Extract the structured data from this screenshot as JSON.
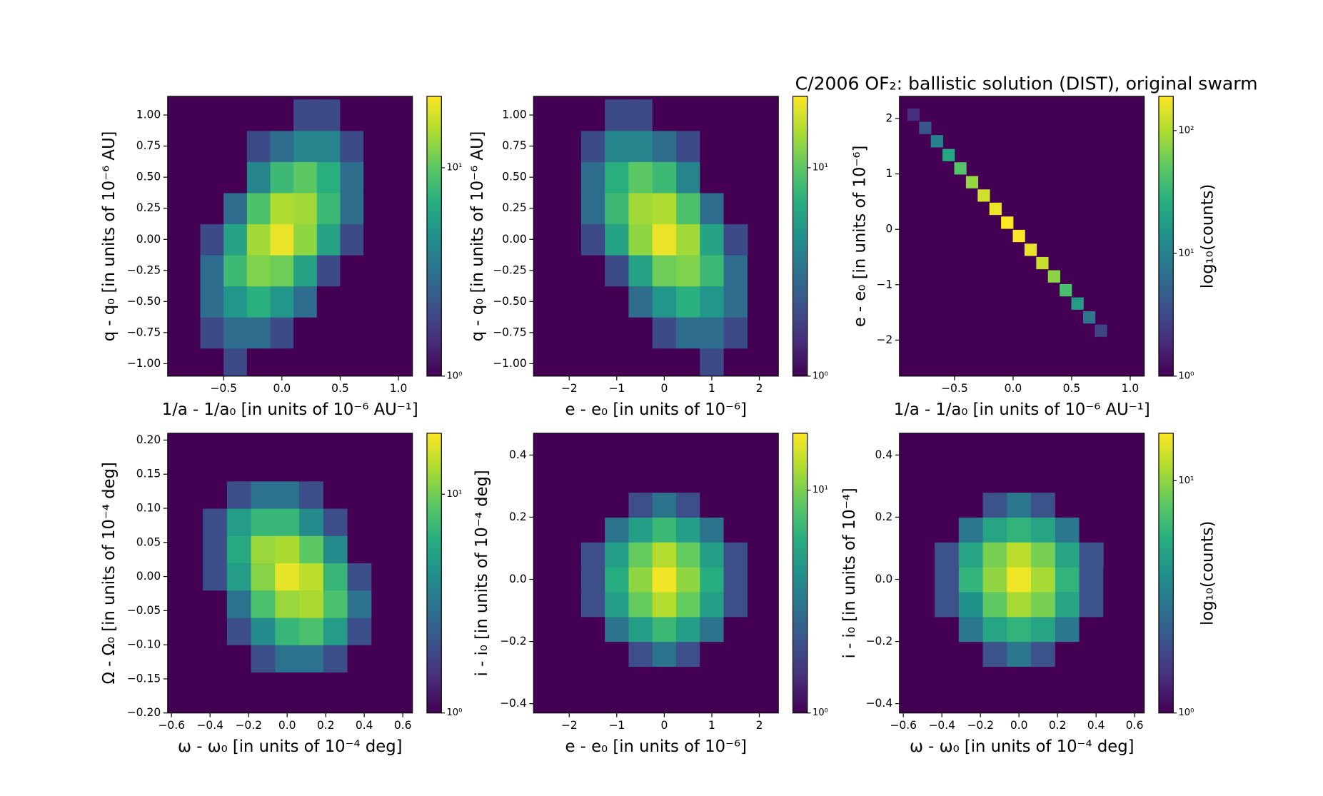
{
  "title": "C/2006 OF₂:  ballistic solution (DIST), original swarm",
  "chart_data": [
    {
      "type": "hexbin",
      "colormap": "viridis",
      "xlabel": "1/a - 1/a₀ [in units of 10⁻⁶ AU⁻¹]",
      "ylabel": "q - q₀ [in units of 10⁻⁶ AU]",
      "xlim": [
        -0.98,
        1.12
      ],
      "ylim": [
        -1.1,
        1.15
      ],
      "xticks": [
        {
          "value": -0.5,
          "label": "−0.5"
        },
        {
          "value": 0,
          "label": "0.0"
        },
        0.5,
        {
          "value": 1,
          "label": "1.0"
        }
      ],
      "yticks": [
        {
          "value": -1,
          "label": "−1.00"
        },
        {
          "value": -0.75,
          "label": "−0.75"
        },
        {
          "value": -0.5,
          "label": "−0.50"
        },
        {
          "value": -0.25,
          "label": "−0.25"
        },
        {
          "value": 0,
          "label": "0.00"
        },
        {
          "value": 0.25,
          "label": "0.25"
        },
        {
          "value": 0.5,
          "label": "0.50"
        },
        0.75,
        {
          "value": 1,
          "label": "1.00"
        }
      ],
      "clim": [
        1,
        22
      ],
      "cticks": [
        {
          "value": 1,
          "label": "10⁰"
        },
        {
          "value": 10,
          "label": "10¹"
        }
      ],
      "x": [
        -0.8,
        -0.6,
        -0.4,
        -0.2,
        0,
        0.2,
        0.4,
        0.6,
        0.8
      ],
      "y": [
        -1,
        -0.75,
        -0.5,
        -0.25,
        0,
        0.25,
        0.5,
        0.75,
        1
      ],
      "counts": [
        [
          1,
          1,
          2,
          1,
          1,
          0,
          0,
          0,
          0
        ],
        [
          1,
          2,
          3,
          3,
          2,
          1,
          0,
          0,
          0
        ],
        [
          1,
          3,
          5,
          7,
          5,
          3,
          1,
          0,
          0
        ],
        [
          1,
          3,
          8,
          12,
          11,
          6,
          2,
          1,
          0
        ],
        [
          0,
          2,
          6,
          14,
          20,
          13,
          6,
          2,
          1
        ],
        [
          0,
          1,
          3,
          9,
          15,
          14,
          8,
          3,
          1
        ],
        [
          0,
          0,
          1,
          4,
          8,
          10,
          7,
          3,
          1
        ],
        [
          0,
          0,
          1,
          2,
          3,
          4,
          4,
          2,
          1
        ],
        [
          0,
          0,
          0,
          1,
          1,
          2,
          2,
          1,
          1
        ]
      ]
    },
    {
      "type": "hexbin",
      "colormap": "viridis",
      "xlabel": "e - e₀ [in units of 10⁻⁶]",
      "ylabel": "q - q₀ [in units of 10⁻⁶ AU]",
      "xlim": [
        -2.75,
        2.4
      ],
      "ylim": [
        -1.1,
        1.15
      ],
      "xticks": [
        {
          "value": -2,
          "label": "−2"
        },
        {
          "value": -1,
          "label": "−1"
        },
        0,
        1,
        2
      ],
      "yticks": [
        {
          "value": -1,
          "label": "−1.00"
        },
        {
          "value": -0.75,
          "label": "−0.75"
        },
        {
          "value": -0.5,
          "label": "−0.50"
        },
        {
          "value": -0.25,
          "label": "−0.25"
        },
        {
          "value": 0,
          "label": "0.00"
        },
        {
          "value": 0.25,
          "label": "0.25"
        },
        {
          "value": 0.5,
          "label": "0.50"
        },
        0.75,
        {
          "value": 1,
          "label": "1.00"
        }
      ],
      "clim": [
        1,
        22
      ],
      "cticks": [
        {
          "value": 1,
          "label": "10⁰"
        },
        {
          "value": 10,
          "label": "10¹"
        }
      ],
      "x": [
        -2,
        -1.5,
        -1,
        -0.5,
        0,
        0.5,
        1,
        1.5,
        2
      ],
      "y": [
        -1,
        -0.75,
        -0.5,
        -0.25,
        0,
        0.25,
        0.5,
        0.75,
        1
      ],
      "counts": [
        [
          0,
          0,
          0,
          0,
          1,
          1,
          2,
          1,
          1
        ],
        [
          0,
          0,
          0,
          1,
          2,
          3,
          3,
          2,
          1
        ],
        [
          0,
          0,
          1,
          3,
          5,
          7,
          5,
          3,
          1
        ],
        [
          0,
          1,
          2,
          6,
          11,
          12,
          8,
          3,
          1
        ],
        [
          1,
          2,
          6,
          13,
          20,
          14,
          6,
          2,
          0
        ],
        [
          1,
          3,
          8,
          14,
          15,
          9,
          3,
          1,
          0
        ],
        [
          1,
          3,
          7,
          10,
          8,
          4,
          1,
          0,
          0
        ],
        [
          1,
          2,
          4,
          4,
          3,
          2,
          1,
          0,
          0
        ],
        [
          1,
          1,
          2,
          2,
          1,
          1,
          0,
          0,
          0
        ]
      ]
    },
    {
      "type": "hexbin",
      "colormap": "viridis",
      "xlabel": "1/a - 1/a₀ [in units of 10⁻⁶ AU⁻¹]",
      "ylabel": "e - e₀ [in units of 10⁻⁶]",
      "colorbar_label": "log₁₀(counts)",
      "xlim": [
        -0.97,
        1.12
      ],
      "ylim": [
        -2.65,
        2.4
      ],
      "xticks": [
        {
          "value": -0.5,
          "label": "−0.5"
        },
        {
          "value": 0,
          "label": "0.0"
        },
        0.5,
        {
          "value": 1,
          "label": "1.0"
        }
      ],
      "yticks": [
        {
          "value": -2,
          "label": "−2"
        },
        {
          "value": -1,
          "label": "−1"
        },
        0,
        1,
        2
      ],
      "clim": [
        1,
        190
      ],
      "cticks": [
        {
          "value": 1,
          "label": "10⁰"
        },
        {
          "value": 10,
          "label": "10¹"
        },
        {
          "value": 100,
          "label": "10²"
        }
      ],
      "x": [
        -0.85,
        -0.75,
        -0.65,
        -0.55,
        -0.45,
        -0.35,
        -0.25,
        -0.15,
        -0.05,
        0.05,
        0.15,
        0.25,
        0.35,
        0.45,
        0.55,
        0.65,
        0.75,
        0.85
      ],
      "y": [
        2.07,
        1.83,
        1.59,
        1.34,
        1.1,
        0.85,
        0.61,
        0.37,
        0.12,
        -0.12,
        -0.37,
        -0.61,
        -0.85,
        -1.1,
        -1.34,
        -1.59,
        -1.83,
        -2.07
      ],
      "counts": [
        2,
        4,
        10,
        22,
        45,
        80,
        130,
        170,
        190,
        185,
        160,
        120,
        75,
        40,
        18,
        8,
        3,
        1
      ]
    },
    {
      "type": "hexbin",
      "colormap": "viridis",
      "xlabel": "ω - ω₀ [in units of 10⁻⁴ deg]",
      "ylabel": "Ω - Ω₀ [in units of 10⁻⁴ deg]",
      "xlim": [
        -0.62,
        0.65
      ],
      "ylim": [
        -0.2,
        0.21
      ],
      "xticks": [
        {
          "value": -0.6,
          "label": "−0.6"
        },
        {
          "value": -0.4,
          "label": "−0.4"
        },
        {
          "value": -0.2,
          "label": "−0.2"
        },
        {
          "value": 0,
          "label": "0.0"
        },
        0.2,
        0.4,
        0.6
      ],
      "yticks": [
        {
          "value": -0.2,
          "label": "−0.20"
        },
        {
          "value": -0.15,
          "label": "−0.15"
        },
        {
          "value": -0.1,
          "label": "−0.10"
        },
        {
          "value": -0.05,
          "label": "−0.05"
        },
        {
          "value": 0,
          "label": "0.00"
        },
        0.05,
        {
          "value": 0.1,
          "label": "0.10"
        },
        0.15,
        {
          "value": 0.2,
          "label": "0.20"
        }
      ],
      "clim": [
        1,
        19
      ],
      "cticks": [
        {
          "value": 1,
          "label": "10⁰"
        },
        {
          "value": 10,
          "label": "10¹"
        }
      ],
      "x": [
        -0.5,
        -0.375,
        -0.25,
        -0.125,
        0,
        0.125,
        0.25,
        0.375,
        0.5
      ],
      "y": [
        -0.16,
        -0.12,
        -0.08,
        -0.04,
        0,
        0.04,
        0.08,
        0.12,
        0.16
      ],
      "counts": [
        [
          0,
          0,
          0,
          1,
          1,
          1,
          1,
          0,
          0
        ],
        [
          0,
          0,
          1,
          2,
          3,
          3,
          2,
          1,
          0
        ],
        [
          0,
          1,
          2,
          4,
          7,
          8,
          5,
          2,
          1
        ],
        [
          1,
          1,
          3,
          8,
          12,
          13,
          8,
          3,
          1
        ],
        [
          1,
          2,
          5,
          11,
          17,
          14,
          7,
          2,
          1
        ],
        [
          1,
          2,
          6,
          12,
          13,
          9,
          4,
          1,
          0
        ],
        [
          1,
          2,
          5,
          7,
          7,
          4,
          2,
          1,
          0
        ],
        [
          0,
          1,
          2,
          3,
          3,
          2,
          1,
          0,
          0
        ],
        [
          0,
          0,
          1,
          1,
          1,
          1,
          0,
          0,
          0
        ]
      ]
    },
    {
      "type": "hexbin",
      "colormap": "viridis",
      "xlabel": "e - e₀ [in units of 10⁻⁶]",
      "ylabel": "i - i₀ [in units of 10⁻⁴ deg]",
      "xlim": [
        -2.75,
        2.4
      ],
      "ylim": [
        -0.43,
        0.47
      ],
      "xticks": [
        {
          "value": -2,
          "label": "−2"
        },
        {
          "value": -1,
          "label": "−1"
        },
        0,
        1,
        2
      ],
      "yticks": [
        {
          "value": -0.4,
          "label": "−0.4"
        },
        {
          "value": -0.2,
          "label": "−0.2"
        },
        {
          "value": 0,
          "label": "0.0"
        },
        0.2,
        0.4
      ],
      "clim": [
        1,
        18
      ],
      "cticks": [
        {
          "value": 1,
          "label": "10⁰"
        },
        {
          "value": 10,
          "label": "10¹"
        }
      ],
      "x": [
        -2,
        -1.5,
        -1,
        -0.5,
        0,
        0.5,
        1,
        1.5,
        2
      ],
      "y": [
        -0.32,
        -0.24,
        -0.16,
        -0.08,
        0,
        0.08,
        0.16,
        0.24,
        0.32
      ],
      "counts": [
        [
          0,
          0,
          1,
          1,
          1,
          1,
          1,
          0,
          0
        ],
        [
          0,
          1,
          1,
          2,
          3,
          2,
          1,
          1,
          0
        ],
        [
          0,
          1,
          3,
          5,
          7,
          5,
          3,
          1,
          0
        ],
        [
          1,
          2,
          5,
          9,
          13,
          9,
          5,
          2,
          1
        ],
        [
          1,
          2,
          6,
          11,
          17,
          11,
          6,
          2,
          1
        ],
        [
          1,
          2,
          5,
          9,
          13,
          9,
          5,
          2,
          1
        ],
        [
          0,
          1,
          3,
          5,
          7,
          5,
          3,
          1,
          0
        ],
        [
          0,
          1,
          1,
          2,
          3,
          2,
          1,
          1,
          0
        ],
        [
          0,
          0,
          1,
          1,
          1,
          1,
          1,
          0,
          0
        ]
      ]
    },
    {
      "type": "hexbin",
      "colormap": "viridis",
      "xlabel": "ω - ω₀ [in units of 10⁻⁴ deg]",
      "ylabel": "i - i₀ [in units of 10⁻⁴]",
      "colorbar_label": "log₁₀(counts)",
      "xlim": [
        -0.62,
        0.65
      ],
      "ylim": [
        -0.43,
        0.47
      ],
      "xticks": [
        {
          "value": -0.6,
          "label": "−0.6"
        },
        {
          "value": -0.4,
          "label": "−0.4"
        },
        {
          "value": -0.2,
          "label": "−0.2"
        },
        {
          "value": 0,
          "label": "0.0"
        },
        0.2,
        0.4,
        0.6
      ],
      "yticks": [
        {
          "value": -0.4,
          "label": "−0.4"
        },
        {
          "value": -0.2,
          "label": "−0.2"
        },
        {
          "value": 0,
          "label": "0.0"
        },
        0.2,
        0.4
      ],
      "clim": [
        1,
        16
      ],
      "cticks": [
        {
          "value": 1,
          "label": "10⁰"
        },
        {
          "value": 10,
          "label": "10¹"
        }
      ],
      "x": [
        -0.5,
        -0.375,
        -0.25,
        -0.125,
        0,
        0.125,
        0.25,
        0.375,
        0.5
      ],
      "y": [
        -0.32,
        -0.24,
        -0.16,
        -0.08,
        0,
        0.08,
        0.16,
        0.24,
        0.32
      ],
      "counts": [
        [
          0,
          0,
          1,
          1,
          1,
          1,
          0,
          0,
          0
        ],
        [
          0,
          1,
          1,
          2,
          3,
          2,
          1,
          1,
          0
        ],
        [
          0,
          1,
          3,
          5,
          6,
          5,
          3,
          1,
          0
        ],
        [
          1,
          2,
          4,
          8,
          11,
          9,
          5,
          2,
          1
        ],
        [
          1,
          2,
          6,
          10,
          15,
          11,
          6,
          2,
          1
        ],
        [
          1,
          2,
          5,
          9,
          12,
          9,
          5,
          2,
          0
        ],
        [
          0,
          1,
          3,
          5,
          6,
          5,
          3,
          1,
          0
        ],
        [
          0,
          1,
          1,
          2,
          3,
          2,
          1,
          1,
          0
        ],
        [
          0,
          0,
          1,
          1,
          1,
          1,
          0,
          0,
          0
        ]
      ]
    }
  ]
}
